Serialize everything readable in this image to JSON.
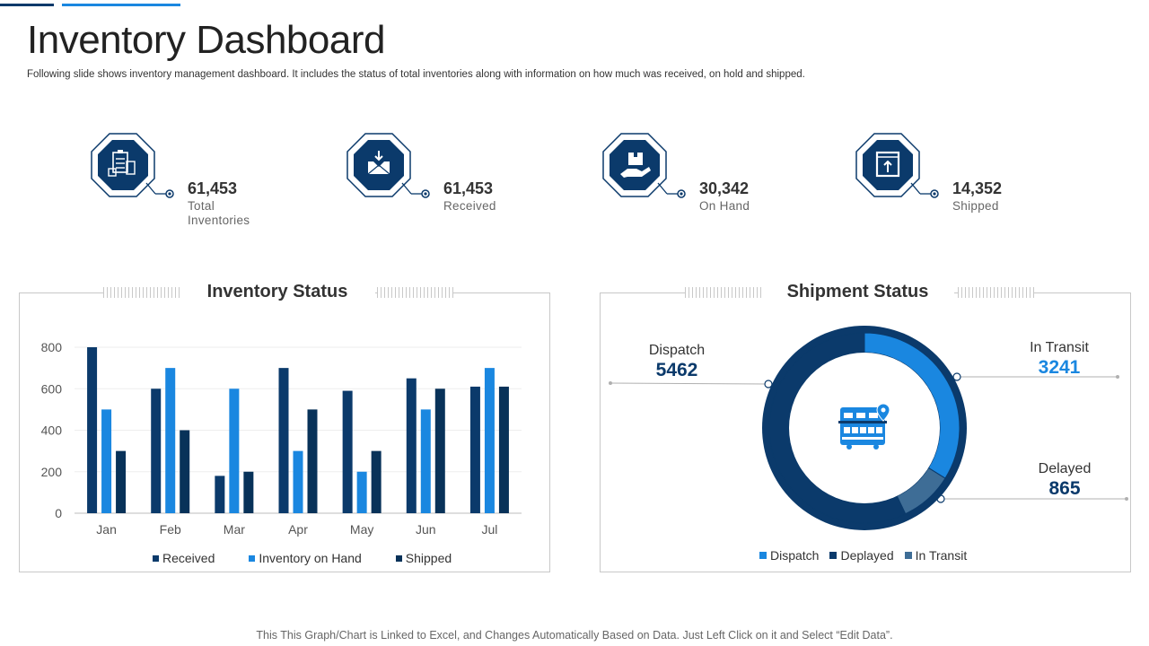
{
  "header": {
    "title": "Inventory Dashboard",
    "subtitle": "Following slide shows inventory management dashboard. It includes the status of total inventories along with information on how much was received, on hold and shipped."
  },
  "kpis": [
    {
      "value": "61,453",
      "label_line1": "Total",
      "label_line2": "Inventories",
      "icon": "clipboard-checklist-icon"
    },
    {
      "value": "61,453",
      "label_line1": "Received",
      "label_line2": "",
      "icon": "inbox-download-icon"
    },
    {
      "value": "30,342",
      "label_line1": "On Hand",
      "label_line2": "",
      "icon": "package-hand-icon"
    },
    {
      "value": "14,352",
      "label_line1": "Shipped",
      "label_line2": "",
      "icon": "box-upload-icon"
    }
  ],
  "colors": {
    "dark": "#0b3a6b",
    "mid": "#1a87e0",
    "navy": "#083259",
    "donut_dark": "#0b3a6b",
    "donut_mid": "#3e6d96",
    "donut_light": "#1a87e0"
  },
  "chart_data": [
    {
      "type": "bar",
      "title": "Inventory Status",
      "categories": [
        "Jan",
        "Feb",
        "Mar",
        "Apr",
        "May",
        "Jun",
        "Jul"
      ],
      "series": [
        {
          "name": "Received",
          "values": [
            800,
            600,
            180,
            700,
            590,
            650,
            610
          ]
        },
        {
          "name": "Inventory on Hand",
          "values": [
            500,
            700,
            600,
            300,
            200,
            500,
            700
          ]
        },
        {
          "name": "Shipped",
          "values": [
            300,
            400,
            200,
            500,
            300,
            600,
            610
          ]
        }
      ],
      "ylim": [
        0,
        800
      ],
      "yticks": [
        0,
        200,
        400,
        600,
        800
      ],
      "xlabel": "",
      "ylabel": "",
      "legend": "bottom"
    },
    {
      "type": "pie",
      "title": "Shipment Status",
      "donut": true,
      "slices": [
        {
          "name": "In Transit",
          "value": 3241
        },
        {
          "name": "Delayed",
          "value": 865
        },
        {
          "name": "Dispatch",
          "value": 5462
        }
      ],
      "labels": {
        "dispatch_name": "Dispatch",
        "dispatch_value": "5462",
        "transit_name": "In Transit",
        "transit_value": "3241",
        "delayed_name": "Delayed",
        "delayed_value": "865"
      },
      "legend_items": [
        "Dispatch",
        "Deplayed",
        "In Transit"
      ],
      "legend": "bottom"
    }
  ],
  "footer": {
    "note": "This This Graph/Chart is Linked to Excel, and Changes Automatically Based on Data. Just Left Click on it and Select “Edit Data”."
  }
}
